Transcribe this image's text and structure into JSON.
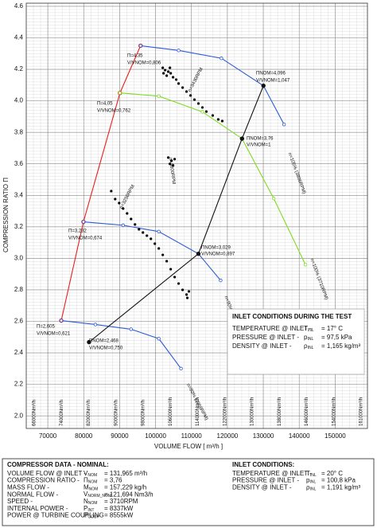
{
  "chart_data": {
    "type": "line",
    "xlabel": "VOLUME FLOW [ m³/h ]",
    "ylabel": "COMPRESSION RATIO  Π",
    "xlim": [
      64000,
      159000
    ],
    "ylim": [
      1.92,
      4.62
    ],
    "xticks": [
      70000,
      80000,
      90000,
      100000,
      110000,
      120000,
      130000,
      140000,
      150000
    ],
    "yticks": [
      {
        "value": 2,
        "label": "2.0"
      },
      2.2,
      2.4,
      2.6,
      2.8,
      {
        "value": 3,
        "label": "3.0"
      },
      3.2,
      3.4,
      3.6,
      3.8,
      {
        "value": 4,
        "label": "4.0"
      },
      4.2,
      4.4,
      4.6
    ],
    "grid": true,
    "minor_grid": true,
    "series": [
      {
        "type": "line",
        "color": "#e8201a",
        "marker": "filled",
        "x": [
          73750,
          79930,
          90090,
          95830
        ],
        "values": [
          2.605,
          3.232,
          4.05,
          4.35
        ]
      },
      {
        "type": "line",
        "color": "#2a5bd7",
        "marker": "open",
        "x": [
          95830,
          106430,
          118340,
          130040,
          135780
        ],
        "values": [
          4.35,
          4.32,
          4.27,
          4.096,
          3.85
        ]
      },
      {
        "type": "line",
        "color": "#7ddc1f",
        "marker": "open",
        "x": [
          90090,
          100900,
          113050,
          124080,
          132910,
          141740
        ],
        "values": [
          4.05,
          4.03,
          3.93,
          3.76,
          3.38,
          2.96
        ]
      },
      {
        "type": "line",
        "color": "#2a5bd7",
        "marker": "open",
        "x": [
          79930,
          90970,
          100910,
          111940,
          118120
        ],
        "values": [
          3.232,
          3.21,
          3.17,
          3.029,
          2.86
        ]
      },
      {
        "type": "line",
        "color": "#2a5bd7",
        "marker": "open",
        "x": [
          73750,
          83250,
          93180,
          100910,
          107090
        ],
        "values": [
          2.605,
          2.58,
          2.55,
          2.49,
          2.3
        ]
      },
      {
        "type": "line",
        "color": "#111111",
        "marker": "filled",
        "x": [
          81480,
          111940,
          124080,
          130040
        ],
        "values": [
          2.468,
          3.029,
          3.76,
          4.096
        ]
      },
      {
        "type": "scatter",
        "color": "#000000",
        "x": [
          102010,
          102670,
          103550,
          104220,
          103110,
          104880,
          105760,
          106420,
          107530,
          108630,
          109740,
          110840,
          111940,
          113050,
          114150,
          115920,
          117460,
          118570,
          102230,
          104000,
          103550,
          104440,
          105320,
          104000,
          104880,
          87660,
          88760,
          89870,
          90970,
          92080,
          93180,
          94280,
          95390,
          96490,
          97590,
          98700,
          99800,
          100910,
          102010,
          103110,
          104220,
          105320,
          106420,
          107530,
          108630,
          108850,
          109290
        ],
        "values": [
          4.21,
          4.195,
          4.185,
          4.175,
          4.16,
          4.15,
          4.135,
          4.11,
          4.084,
          4.059,
          4.034,
          4.008,
          3.983,
          3.958,
          3.932,
          3.907,
          3.882,
          3.872,
          4.175,
          4.21,
          3.64,
          3.62,
          3.63,
          3.6,
          3.59,
          3.427,
          3.376,
          3.351,
          3.316,
          3.285,
          3.25,
          3.215,
          3.184,
          3.164,
          3.144,
          3.124,
          3.093,
          3.063,
          3.022,
          2.982,
          2.931,
          2.881,
          2.84,
          2.8,
          2.77,
          2.749,
          2.79
        ]
      }
    ],
    "annotations": [
      "Π=4,35",
      "V/VNOM=0,806",
      "ΠNOM=4,096",
      "V/VNOM=1,047",
      "Π=4,05",
      "V/VNOM=0,762",
      "ΠNOM=3,76",
      "V/VNOM=1",
      "Π=3,232",
      "V/VNOM=0,674",
      "ΠNOM=3,029",
      "V/VNOM=0,897",
      "Π=2,605",
      "V/VNOM=0,621",
      "ΠNOM=2,468",
      "V/VNOM=0,750",
      "n=3430RPM",
      "n=105% (3896RPM)",
      "n=100% (3710RPM)",
      "n=90% (3339RPM)",
      "n=80% (2968RPM)",
      "n=3800RPM",
      "n=3250RPM"
    ],
    "flow_labels": [
      "66000Nm³/h",
      "74000Nm³/h",
      "82000Nm³/h",
      "90000Nm³/h",
      "98000Nm³/h",
      "106000Nm³/h",
      "114000Nm³/h",
      "122000Nm³/h",
      "130000Nm³/h",
      "138000Nm³/h",
      "146000Nm³/h",
      "154000Nm³/h",
      "161000Nm³/h"
    ]
  },
  "inlet_test": {
    "title": "INLET CONDITIONS DURING THE TEST",
    "rows": [
      [
        "TEMPERATURE @ INLET -",
        {
          "base": "T",
          "sub": "INL"
        },
        "= 17° C"
      ],
      [
        "PRESSURE @ INLET -",
        {
          "base": "p",
          "sub": "INL"
        },
        "= 97,5 kPa"
      ],
      [
        "DENSITY @ INLET -",
        {
          "base": "ρ",
          "sub": "INL"
        },
        "= 1,165 kg/m³"
      ]
    ]
  },
  "nominal": {
    "title": "COMPRESSOR DATA - NOMINAL:",
    "rows": [
      [
        "VOLUME FLOW @ INLET -",
        {
          "base": "V",
          "sub": "NOM"
        },
        "= 131,965 m³/h"
      ],
      [
        "COMPRESSION RATIO -",
        {
          "base": "Π",
          "sub": "NOM"
        },
        "= 3,76"
      ],
      [
        "MASS FLOW -",
        {
          "base": "M",
          "sub": "NOM"
        },
        "= 157,229 kg/h"
      ],
      [
        "NORMAL FLOW -",
        {
          "base": "V",
          "sub": "NORM_NOM"
        },
        "= 121,694 Nm3/h"
      ],
      [
        "SPEED -",
        {
          "base": "N",
          "sub": "NOM"
        },
        "= 3710RPM"
      ],
      [
        "INTERNAL POWER -",
        {
          "base": "P",
          "sub": "INT"
        },
        "= 8337kW"
      ],
      [
        "POWER @ TURBINE COUPLING",
        {
          "base": "P",
          "sub": "COUP"
        },
        "= 8555kW"
      ]
    ]
  },
  "inlet_nominal": {
    "title": "INLET CONDITIONS:",
    "rows": [
      [
        "TEMPERATURE @ INLET -",
        {
          "base": "T",
          "sub": "INL"
        },
        "= 20° C"
      ],
      [
        "PRESSURE @ INLET -",
        {
          "base": "p",
          "sub": "INL"
        },
        "= 100,8 kPa"
      ],
      [
        "DENSITY @ INLET -",
        {
          "base": "ρ",
          "sub": "INL"
        },
        "= 1,191 kg/m³"
      ]
    ]
  }
}
